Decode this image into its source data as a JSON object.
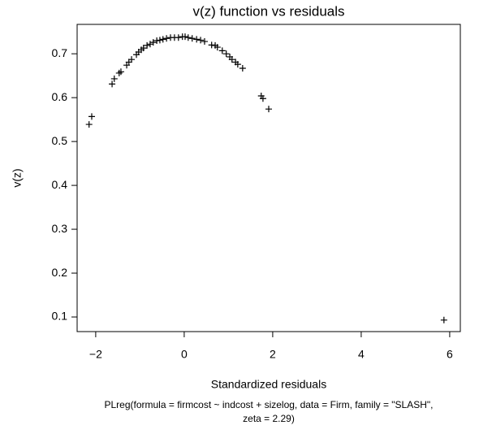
{
  "chart_data": {
    "type": "scatter",
    "title": "v(z) function vs residuals",
    "xlabel": "Standardized residuals",
    "ylabel": "v(z)",
    "subtitle": [
      "PLreg(formula = firmcost ~ indcost + sizelog, data = Firm, family = \"SLASH\",",
      "zeta = 2.29)"
    ],
    "color": "#000000",
    "marker": "+",
    "x": [
      -2.15,
      -2.09,
      -1.63,
      -1.58,
      -1.47,
      -1.43,
      -1.3,
      -1.25,
      -1.19,
      -1.08,
      -1.03,
      -0.97,
      -0.92,
      -0.84,
      -0.77,
      -0.7,
      -0.62,
      -0.55,
      -0.48,
      -0.4,
      -0.31,
      -0.22,
      -0.13,
      -0.04,
      0.02,
      0.09,
      0.18,
      0.28,
      0.37,
      0.46,
      0.62,
      0.7,
      0.75,
      0.86,
      0.95,
      1.03,
      1.08,
      1.16,
      1.21,
      1.32,
      1.74,
      1.78,
      1.91,
      5.87
    ],
    "values": [
      0.539,
      0.557,
      0.631,
      0.643,
      0.656,
      0.659,
      0.674,
      0.681,
      0.687,
      0.698,
      0.704,
      0.709,
      0.713,
      0.719,
      0.722,
      0.726,
      0.73,
      0.731,
      0.733,
      0.735,
      0.737,
      0.737,
      0.737,
      0.739,
      0.739,
      0.737,
      0.735,
      0.733,
      0.731,
      0.728,
      0.72,
      0.719,
      0.715,
      0.707,
      0.7,
      0.693,
      0.687,
      0.681,
      0.676,
      0.667,
      0.604,
      0.598,
      0.574,
      0.093
    ],
    "xlim": [
      -2.42,
      6.24
    ],
    "ylim": [
      0.0667,
      0.767
    ],
    "xticks": [
      {
        "value": -2,
        "label": "−2"
      },
      0,
      2,
      4,
      6
    ],
    "yticks": [
      0.1,
      0.2,
      0.3,
      0.4,
      0.5,
      0.6,
      0.7
    ]
  }
}
